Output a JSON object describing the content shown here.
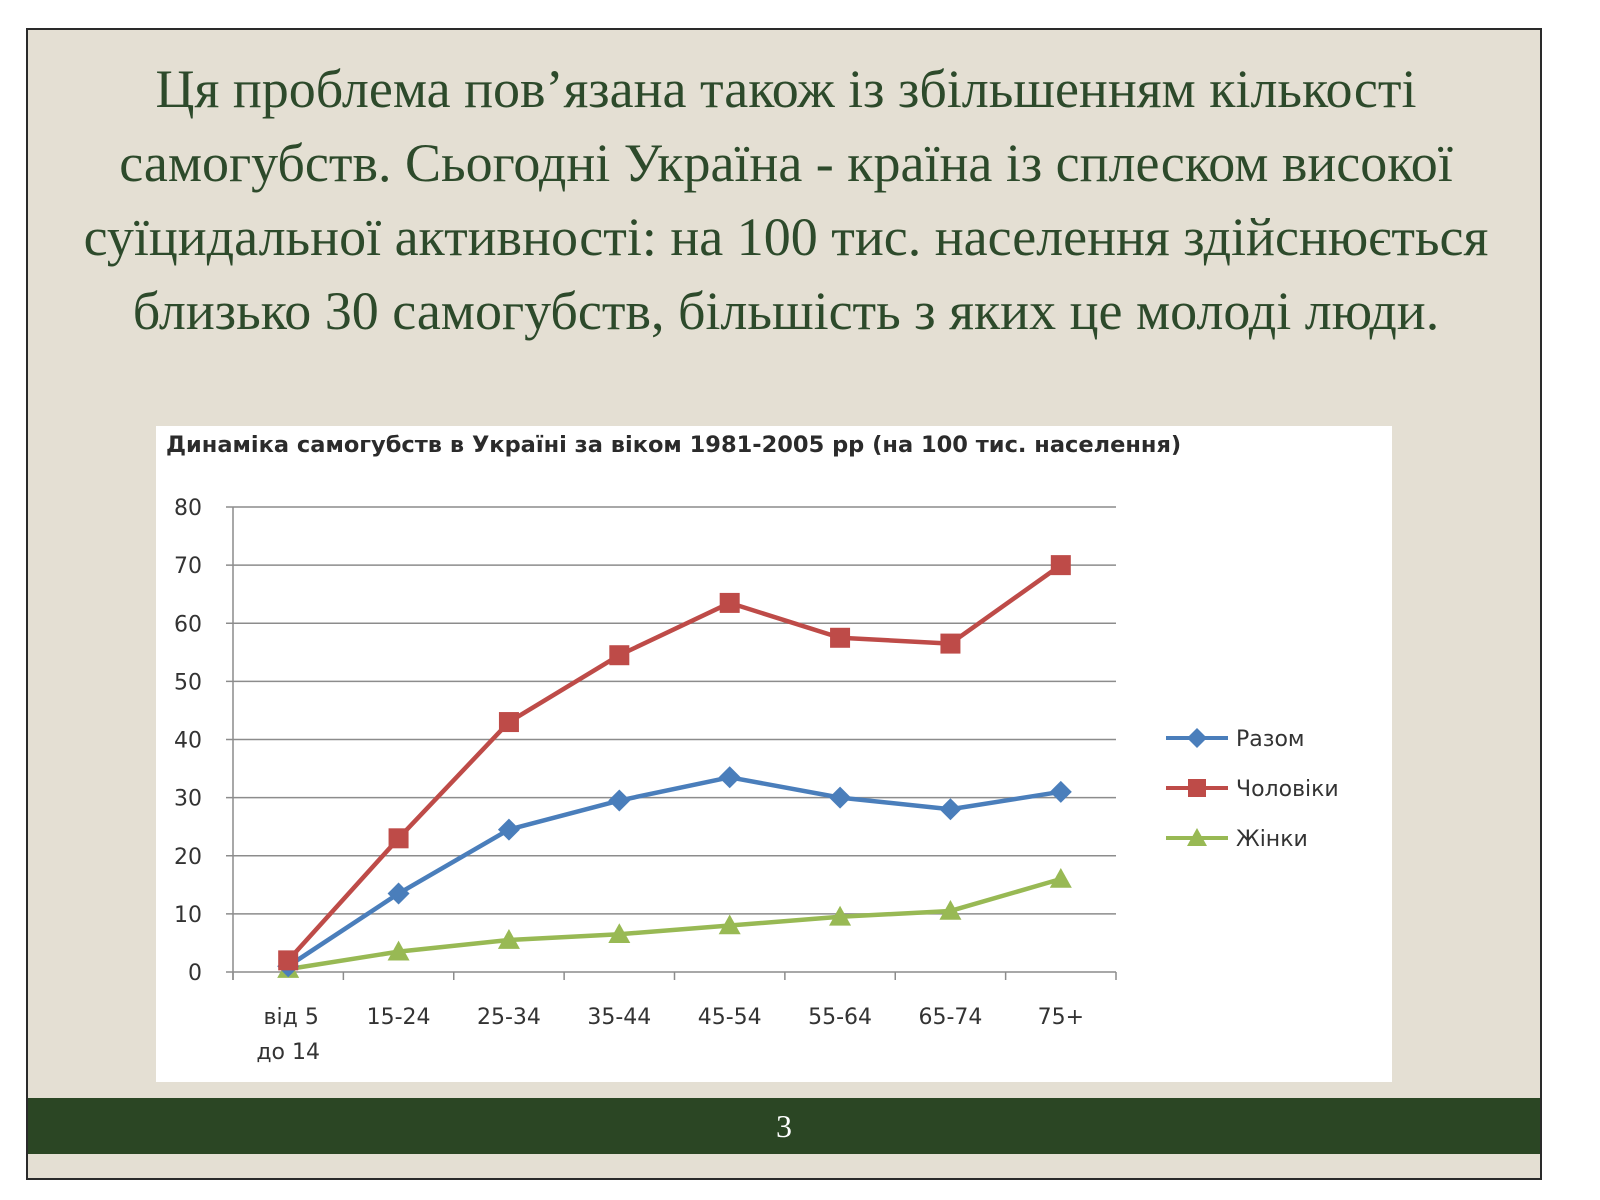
{
  "slide": {
    "text": "Ця проблема пов’язана також із збільшенням кількості самогубств. Сьогодні Україна - країна із сплеском високої суїцидальної активності: на 100 тис. населення здійснюється близько 30 самогубств, більшість з яких це молоді люди.",
    "page_number": "3"
  },
  "colors": {
    "slide_background": "#e4dfd3",
    "text": "#2d4a2b",
    "footer": "#2b4624"
  },
  "chart_data": {
    "type": "line",
    "title": "Динаміка самогубств в Україні за віком 1981-2005 рр (на 100 тис. населення)",
    "categories": [
      [
        "від 5",
        "до 14"
      ],
      [
        "15-24"
      ],
      [
        "25-34"
      ],
      [
        "35-44"
      ],
      [
        "45-54"
      ],
      [
        "55-64"
      ],
      [
        "65-74"
      ],
      [
        "75+"
      ]
    ],
    "series": [
      {
        "name": "Разом",
        "color": "#4a7ebb",
        "marker": "diamond",
        "values": [
          1,
          13.5,
          24.5,
          29.5,
          33.5,
          30,
          28,
          31
        ]
      },
      {
        "name": "Чоловіки",
        "color": "#be4b48",
        "marker": "square",
        "values": [
          2,
          23,
          43,
          54.5,
          63.5,
          57.5,
          56.5,
          70
        ]
      },
      {
        "name": "Жінки",
        "color": "#98b954",
        "marker": "triangle",
        "values": [
          0.5,
          3.5,
          5.5,
          6.5,
          8,
          9.5,
          10.5,
          16
        ]
      }
    ],
    "ylim": [
      0,
      80
    ],
    "yticks": [
      0,
      10,
      20,
      30,
      40,
      50,
      60,
      70,
      80
    ],
    "grid": true,
    "legend_position": "right"
  }
}
